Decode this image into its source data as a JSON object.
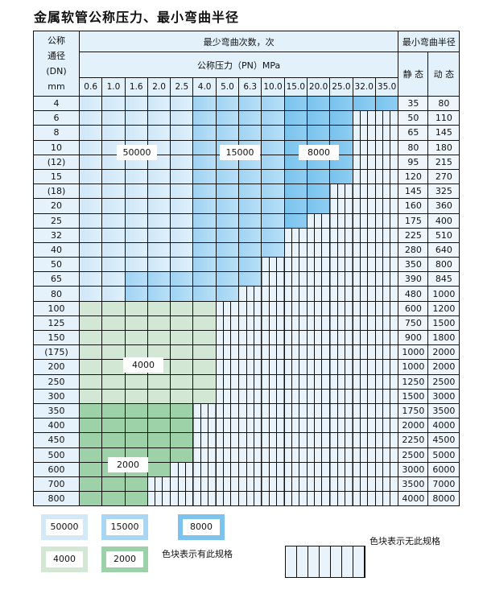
{
  "title": "金属软管公称压力、最小弯曲半径",
  "header": {
    "dn_label": [
      "公称",
      "通径",
      "(DN)",
      "mm"
    ],
    "cycles_label": "最少弯曲次数，次",
    "pressure_label": "公称压力（PN）MPa",
    "radius_label": "最小弯曲半径",
    "static_label": "静 态",
    "dynamic_label": "动 态",
    "pressures": [
      "0.6",
      "1.0",
      "1.6",
      "2.0",
      "2.5",
      "4.0",
      "5.0",
      "6.3",
      "10.0",
      "15.0",
      "20.0",
      "25.0",
      "32.0",
      "35.0"
    ]
  },
  "legend_codes": {
    "a": "50000",
    "b": "15000",
    "c": "8000",
    "d": "4000",
    "e": "2000",
    "n": "none"
  },
  "colors": {
    "a": "#d4e9f8",
    "b": "#a9d6f3",
    "c": "#7cc4ee",
    "d": "#d2e8d4",
    "e": "#9dd1a7",
    "n": "#e9f3fb"
  },
  "rows": [
    {
      "dn": "4",
      "static": "35",
      "dynamic": "80",
      "cells": "aaaaabbbbccccc"
    },
    {
      "dn": "6",
      "static": "50",
      "dynamic": "110",
      "cells": "aaaaabbbbcccnn"
    },
    {
      "dn": "8",
      "static": "65",
      "dynamic": "145",
      "cells": "aaaaabbbbcccnn"
    },
    {
      "dn": "10",
      "static": "80",
      "dynamic": "180",
      "cells": "aaaaabbbbcccnn"
    },
    {
      "dn": "(12)",
      "static": "95",
      "dynamic": "215",
      "cells": "aaaaabbbbcccnn"
    },
    {
      "dn": "15",
      "static": "120",
      "dynamic": "270",
      "cells": "aaaaabbbbcccnn"
    },
    {
      "dn": "(18)",
      "static": "145",
      "dynamic": "325",
      "cells": "aaaaabbbbccnnn"
    },
    {
      "dn": "20",
      "static": "160",
      "dynamic": "360",
      "cells": "aaaaabbbbccnnn"
    },
    {
      "dn": "25",
      "static": "175",
      "dynamic": "400",
      "cells": "aaaaabbbbcnnnn"
    },
    {
      "dn": "32",
      "static": "225",
      "dynamic": "510",
      "cells": "aaaaabbbbnnnnn"
    },
    {
      "dn": "40",
      "static": "280",
      "dynamic": "640",
      "cells": "aaaaabbbbnnnnn"
    },
    {
      "dn": "50",
      "static": "350",
      "dynamic": "800",
      "cells": "aaaaabbbnnnnnn"
    },
    {
      "dn": "65",
      "static": "390",
      "dynamic": "845",
      "cells": "aabbbbbbnnnnnn"
    },
    {
      "dn": "80",
      "static": "480",
      "dynamic": "1000",
      "cells": "aabbbbbnnnnnnn"
    },
    {
      "dn": "100",
      "static": "600",
      "dynamic": "1200",
      "cells": "ddddddnnnnnnnn"
    },
    {
      "dn": "125",
      "static": "750",
      "dynamic": "1500",
      "cells": "ddddddnnnnnnnn"
    },
    {
      "dn": "150",
      "static": "900",
      "dynamic": "1800",
      "cells": "ddddddnnnnnnnn"
    },
    {
      "dn": "(175)",
      "static": "1000",
      "dynamic": "2000",
      "cells": "ddddddnnnnnnnn"
    },
    {
      "dn": "200",
      "static": "1000",
      "dynamic": "2000",
      "cells": "ddddddnnnnnnnn"
    },
    {
      "dn": "250",
      "static": "1250",
      "dynamic": "2500",
      "cells": "ddddddnnnnnnnn"
    },
    {
      "dn": "300",
      "static": "1500",
      "dynamic": "3000",
      "cells": "ddddddnnnnnnnn"
    },
    {
      "dn": "350",
      "static": "1750",
      "dynamic": "3500",
      "cells": "eeeeennnnnnnnn"
    },
    {
      "dn": "400",
      "static": "2000",
      "dynamic": "4000",
      "cells": "eeeeennnnnnnnn"
    },
    {
      "dn": "450",
      "static": "2250",
      "dynamic": "4500",
      "cells": "eeeeennnnnnnnn"
    },
    {
      "dn": "500",
      "static": "2500",
      "dynamic": "5000",
      "cells": "eeeeennnnnnnnn"
    },
    {
      "dn": "600",
      "static": "3000",
      "dynamic": "6000",
      "cells": "eeeennnnnnnnnn"
    },
    {
      "dn": "700",
      "static": "3500",
      "dynamic": "7000",
      "cells": "eeennnnnnnnnnn"
    },
    {
      "dn": "800",
      "static": "4000",
      "dynamic": "8000",
      "cells": "eeennnnnnnnnnn"
    }
  ],
  "region_labels": {
    "a": "50000",
    "b": "15000",
    "c": "8000",
    "d": "4000",
    "e": "2000"
  },
  "legend": {
    "items": [
      "50000",
      "15000",
      "8000",
      "4000",
      "2000"
    ],
    "has_spec_text": "色块表示有此规格",
    "no_spec_text": "色块表示无此规格"
  }
}
